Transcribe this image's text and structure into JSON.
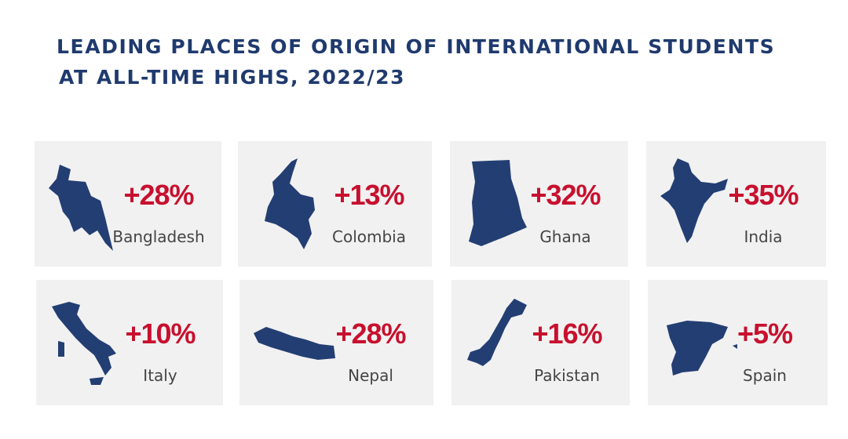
{
  "header": {
    "title_lines": [
      "LEADING PLACES OF ORIGIN OF INTERNATIONAL STUDENTS",
      "AT ALL-TIME HIGHS, 2022/23"
    ]
  },
  "cards": [
    {
      "change": "+28%",
      "name": "Bangladesh"
    },
    {
      "change": "+13%",
      "name": "Colombia"
    },
    {
      "change": "+32%",
      "name": "Ghana"
    },
    {
      "change": "+35%",
      "name": "India"
    },
    {
      "change": "+10%",
      "name": "Italy"
    },
    {
      "change": "+28%",
      "name": "Nepal"
    },
    {
      "change": "+16%",
      "name": "Pakistan"
    },
    {
      "change": "+5%",
      "name": "Spain"
    }
  ]
}
